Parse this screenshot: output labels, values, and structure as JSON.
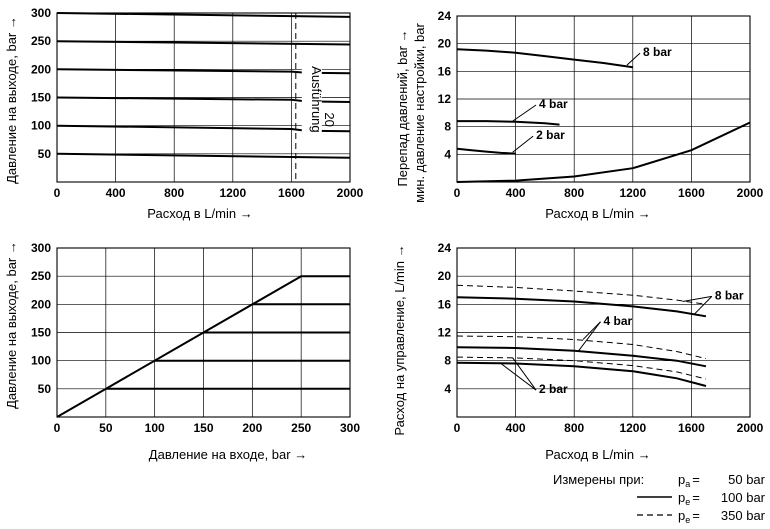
{
  "chart_data": [
    {
      "id": "tl",
      "type": "line",
      "xlabel": "Расход в L/min",
      "ylabel": "Давление на выходе, bar",
      "xlim": [
        0,
        2000
      ],
      "ylim": [
        0,
        300
      ],
      "x_ticks": [
        "0",
        "400",
        "800",
        "1200",
        "1600",
        "2000"
      ],
      "y_ticks": [
        "50",
        "100",
        "150",
        "200",
        "250",
        "300"
      ],
      "grid": true,
      "annotation": {
        "text": "Ausführung 20",
        "x": 1630,
        "y": 95
      },
      "series": [
        {
          "x": [
            0,
            2000
          ],
          "y": [
            300,
            293
          ]
        },
        {
          "x": [
            0,
            2000
          ],
          "y": [
            250,
            244
          ]
        },
        {
          "x": [
            0,
            1600,
            1700,
            2000
          ],
          "y": [
            200,
            196,
            194,
            193
          ]
        },
        {
          "x": [
            0,
            1600,
            1700,
            2000
          ],
          "y": [
            150,
            146,
            143,
            142
          ]
        },
        {
          "x": [
            0,
            1600,
            1700,
            2000
          ],
          "y": [
            100,
            94,
            91,
            90
          ]
        },
        {
          "x": [
            0,
            2000
          ],
          "y": [
            50,
            43
          ]
        }
      ]
    },
    {
      "id": "tr",
      "type": "line",
      "xlabel": "Расход в L/min",
      "ylabel": "Перепад давлений, bar →",
      "ylabel2": "мин. давление настройки, bar",
      "xlim": [
        0,
        2000
      ],
      "ylim": [
        0,
        24
      ],
      "x_ticks": [
        "0",
        "400",
        "800",
        "1200",
        "1600",
        "2000"
      ],
      "y_ticks": [
        "4",
        "8",
        "12",
        "16",
        "20",
        "24"
      ],
      "grid": true,
      "series": [
        {
          "name": "8 bar",
          "x": [
            0,
            200,
            400,
            600,
            800,
            1000,
            1200
          ],
          "y": [
            19.2,
            19.0,
            18.7,
            18.2,
            17.7,
            17.2,
            16.6
          ],
          "label_at": [
            1270,
            18.2
          ],
          "leader_to": [
            1160,
            16.9
          ]
        },
        {
          "name": "4 bar",
          "x": [
            0,
            200,
            400,
            600,
            700
          ],
          "y": [
            8.8,
            8.8,
            8.7,
            8.5,
            8.3
          ],
          "label_at": [
            560,
            10.7
          ],
          "leader_to": [
            380,
            8.8
          ]
        },
        {
          "name": "2 bar",
          "x": [
            0,
            100,
            200,
            300,
            400
          ],
          "y": [
            4.8,
            4.6,
            4.4,
            4.2,
            4.1
          ],
          "label_at": [
            540,
            6.2
          ],
          "leader_to": [
            380,
            4.3
          ]
        },
        {
          "name": "",
          "x": [
            0,
            400,
            800,
            1200,
            1600,
            2000
          ],
          "y": [
            0,
            0.2,
            0.8,
            2.0,
            4.6,
            8.6
          ]
        }
      ]
    },
    {
      "id": "bl",
      "type": "line",
      "xlabel": "Давление на входе, bar",
      "ylabel": "Давление на выходе, bar",
      "xlim": [
        0,
        300
      ],
      "ylim": [
        0,
        300
      ],
      "x_ticks": [
        "0",
        "50",
        "100",
        "150",
        "200",
        "250",
        "300"
      ],
      "y_ticks": [
        "50",
        "100",
        "150",
        "200",
        "250",
        "300"
      ],
      "grid": true,
      "series": [
        {
          "x": [
            0,
            250,
            300
          ],
          "y": [
            0,
            250,
            250
          ]
        },
        {
          "x": [
            200,
            300
          ],
          "y": [
            200,
            200
          ]
        },
        {
          "x": [
            150,
            300
          ],
          "y": [
            150,
            150
          ]
        },
        {
          "x": [
            100,
            300
          ],
          "y": [
            100,
            100
          ]
        },
        {
          "x": [
            50,
            300
          ],
          "y": [
            50,
            50
          ]
        }
      ]
    },
    {
      "id": "br",
      "type": "line",
      "xlabel": "Расход в L/min",
      "ylabel": "Расход на управление, L/min",
      "xlim": [
        0,
        2000
      ],
      "ylim": [
        0,
        24
      ],
      "x_ticks": [
        "0",
        "400",
        "800",
        "1200",
        "1600",
        "2000"
      ],
      "y_ticks": [
        "4",
        "8",
        "12",
        "16",
        "20",
        "24"
      ],
      "grid": true,
      "series": [
        {
          "name": "8 bar",
          "style": "solid",
          "x": [
            0,
            400,
            800,
            1200,
            1500,
            1700
          ],
          "y": [
            17.0,
            16.8,
            16.4,
            15.7,
            15.0,
            14.3
          ],
          "label_at": [
            1760,
            16.7
          ],
          "leader_to": [
            1620,
            14.6
          ]
        },
        {
          "name": "8 bar",
          "style": "dashed",
          "x": [
            0,
            400,
            800,
            1200,
            1500,
            1700
          ],
          "y": [
            18.7,
            18.4,
            17.9,
            17.3,
            16.6,
            16.0
          ],
          "label_at": null,
          "leader_to": [
            1540,
            16.4
          ]
        },
        {
          "name": "4 bar",
          "style": "solid",
          "x": [
            0,
            400,
            800,
            1200,
            1500,
            1700
          ],
          "y": [
            9.9,
            9.8,
            9.4,
            8.7,
            8.0,
            7.2
          ],
          "label_at": [
            1000,
            13.1
          ],
          "leader_to": [
            830,
            9.4
          ]
        },
        {
          "name": "4 bar",
          "style": "dashed",
          "x": [
            0,
            400,
            800,
            1200,
            1500,
            1700
          ],
          "y": [
            11.5,
            11.4,
            11.0,
            10.3,
            9.3,
            8.3
          ],
          "label_at": null,
          "leader_to": [
            860,
            11.0
          ]
        },
        {
          "name": "2 bar",
          "style": "solid",
          "x": [
            0,
            400,
            800,
            1200,
            1500,
            1700
          ],
          "y": [
            7.7,
            7.6,
            7.2,
            6.5,
            5.5,
            4.4
          ],
          "label_at": [
            560,
            3.4
          ],
          "leader_to": [
            300,
            7.6
          ]
        },
        {
          "name": "2 bar",
          "style": "dashed",
          "x": [
            0,
            400,
            800,
            1200,
            1500,
            1700
          ],
          "y": [
            8.5,
            8.4,
            8.0,
            7.3,
            6.4,
            5.4
          ],
          "label_at": null,
          "leader_to": [
            380,
            8.4
          ]
        }
      ]
    }
  ],
  "legend": {
    "title": "Измерены при:",
    "rows": [
      {
        "sym": "",
        "name": "p",
        "sub": "a",
        "eq": "=",
        "value": "50 bar"
      },
      {
        "sym": "solid",
        "name": "p",
        "sub": "e",
        "eq": "=",
        "value": "100 bar"
      },
      {
        "sym": "dashed",
        "name": "p",
        "sub": "e",
        "eq": "=",
        "value": "350 bar"
      }
    ]
  }
}
